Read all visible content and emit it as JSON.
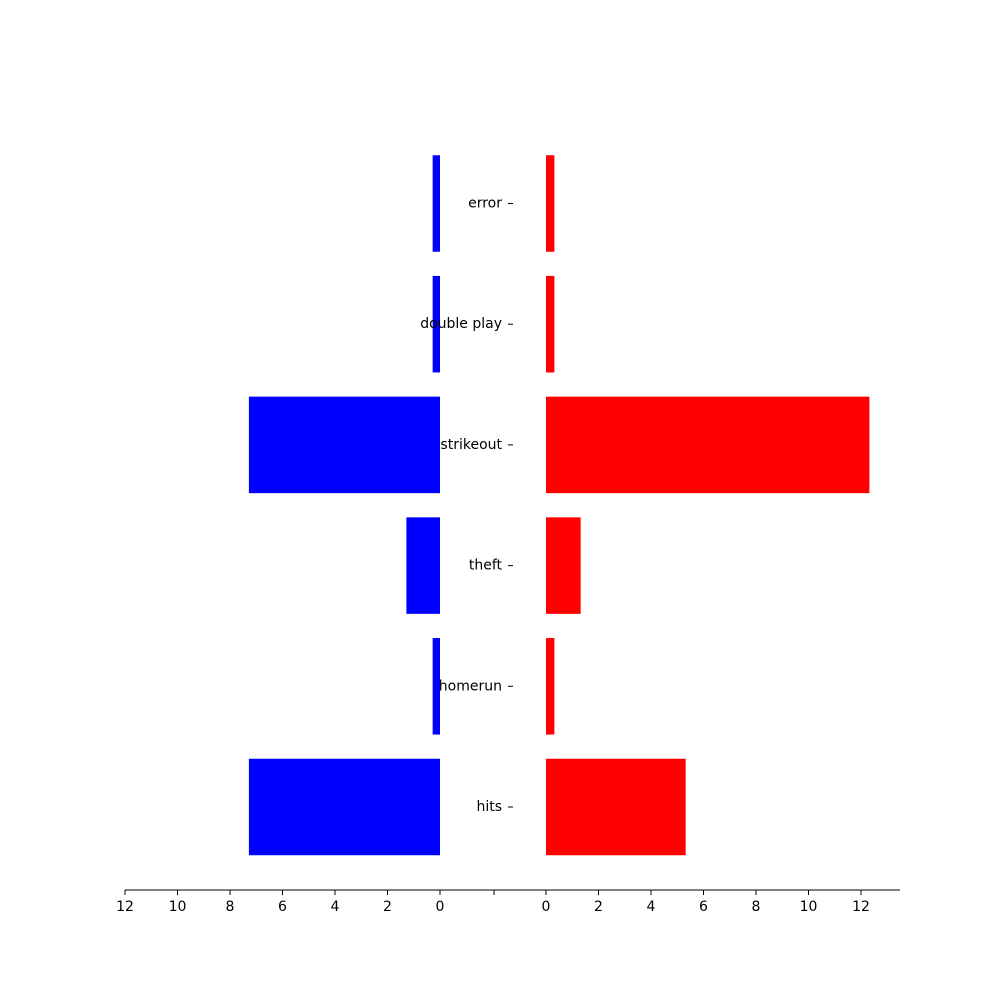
{
  "chart_data": {
    "type": "bar",
    "orientation": "horizontal-mirrored",
    "categories": [
      "error",
      "double play",
      "strikeout",
      "theft",
      "homerun",
      "hits"
    ],
    "series": [
      {
        "values": [
          0.28,
          0.28,
          7.28,
          1.28,
          0.28,
          7.28
        ],
        "color": "#0000ff",
        "side": "left"
      },
      {
        "values": [
          0.32,
          0.32,
          12.32,
          1.32,
          0.32,
          5.32
        ],
        "color": "#ff0000",
        "side": "right"
      }
    ],
    "xlim": [
      0,
      12
    ],
    "x_ticks": [
      "12",
      "10",
      "8",
      "6",
      "4",
      "2",
      "0",
      "0",
      "2",
      "4",
      "6",
      "8",
      "10",
      "12"
    ],
    "title": "",
    "xlabel": "",
    "ylabel": "",
    "grid": false,
    "legend": "none"
  }
}
